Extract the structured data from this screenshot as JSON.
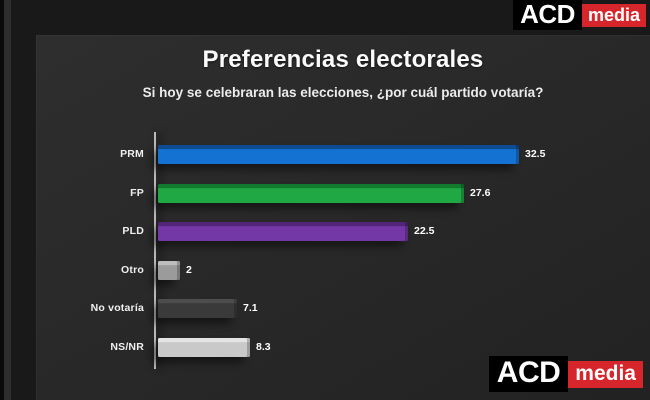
{
  "brand": {
    "name_primary": "ACD",
    "name_secondary": "media",
    "red": "#d6252b",
    "black": "#000000"
  },
  "chart_data": {
    "type": "bar",
    "orientation": "horizontal",
    "title": "Preferencias electorales",
    "subtitle": "Si hoy se celebraran las elecciones, ¿por cuál partido votaría?",
    "categories": [
      "PRM",
      "FP",
      "PLD",
      "Otro",
      "No votaría",
      "NS/NR"
    ],
    "values": [
      32.5,
      27.6,
      22.5,
      2,
      7.1,
      8.3
    ],
    "value_labels": [
      "32.5",
      "27.6",
      "22.5",
      "2",
      "7.1",
      "8.3"
    ],
    "bar_colors": [
      "#1473d2",
      "#1fa844",
      "#7437a6",
      "#9b9b9b",
      "#3a3a3a",
      "#c9c9c9"
    ],
    "bar_bevel_colors": [
      "#0d4c90",
      "#117a2e",
      "#522578",
      "#bdbdbd",
      "#4d4d4d",
      "#e4e4e4"
    ],
    "xlim": [
      0,
      44
    ],
    "grid": false,
    "legend": false,
    "background": "#282828"
  }
}
